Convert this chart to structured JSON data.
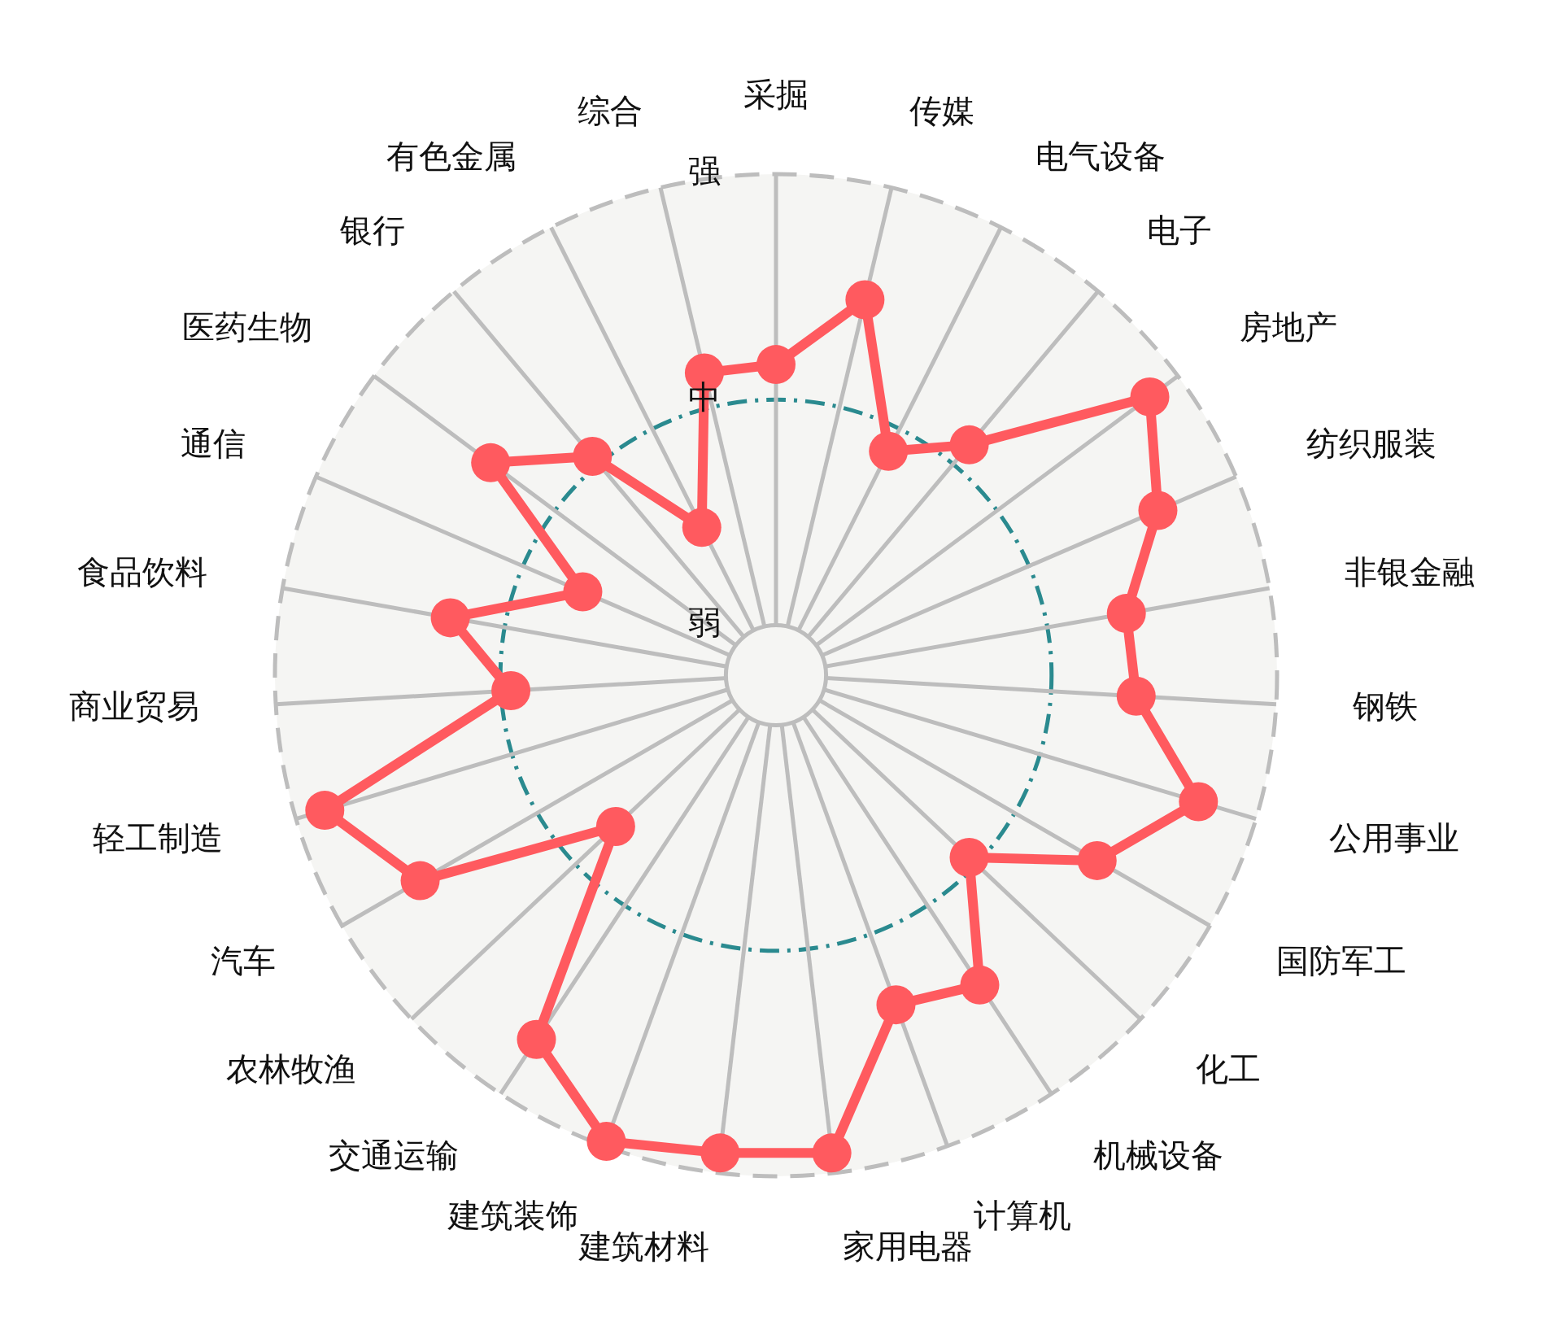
{
  "chart_data": {
    "type": "radar",
    "categories": [
      "采掘",
      "传媒",
      "电气设备",
      "电子",
      "房地产",
      "纺织服装",
      "非银金融",
      "钢铁",
      "公用事业",
      "国防军工",
      "化工",
      "机械设备",
      "计算机",
      "家用电器",
      "建筑材料",
      "建筑装饰",
      "交通运输",
      "农林牧渔",
      "汽车",
      "轻工制造",
      "商业贸易",
      "食品饮料",
      "通信",
      "医药生物",
      "银行",
      "有色金属",
      "综合"
    ],
    "series": [
      {
        "color": "#ff5a5f",
        "values": [
          62,
          77,
          50,
          60,
          93,
          83,
          71,
          72,
          88,
          74,
          53,
          74,
          70,
          96,
          96,
          99,
          87,
          44,
          82,
          94,
          53,
          66,
          42,
          71,
          57,
          33,
          62
        ]
      }
    ],
    "ylim": [
      0,
      100
    ],
    "yticks": [
      {
        "value": 10,
        "label": "弱"
      },
      {
        "value": 55,
        "label": "中"
      },
      {
        "value": 100,
        "label": "强"
      }
    ],
    "grid": true,
    "marker": "circle"
  }
}
